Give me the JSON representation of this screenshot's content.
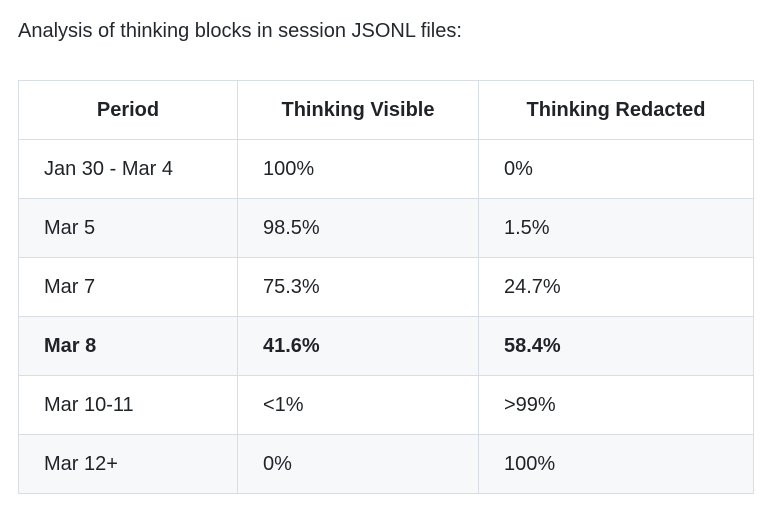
{
  "title": "Analysis of thinking blocks in session JSONL files:",
  "colors": {
    "text": "#1f2328",
    "stripe_row_background": "#f6f8fa",
    "border": "#d8dee4",
    "page_background": "#ffffff"
  },
  "table": {
    "columns": [
      "Period",
      "Thinking Visible",
      "Thinking Redacted"
    ],
    "rows": [
      {
        "period": "Jan 30 - Mar 4",
        "visible": "100%",
        "redacted": "0%",
        "bold": false
      },
      {
        "period": "Mar 5",
        "visible": "98.5%",
        "redacted": "1.5%",
        "bold": false
      },
      {
        "period": "Mar 7",
        "visible": "75.3%",
        "redacted": "24.7%",
        "bold": false
      },
      {
        "period": "Mar 8",
        "visible": "41.6%",
        "redacted": "58.4%",
        "bold": true
      },
      {
        "period": "Mar 10-11",
        "visible": "<1%",
        "redacted": ">99%",
        "bold": false
      },
      {
        "period": "Mar 12+",
        "visible": "0%",
        "redacted": "100%",
        "bold": false
      }
    ]
  },
  "chart_data": {
    "type": "table",
    "title": "Analysis of thinking blocks in session JSONL files:",
    "categories": [
      "Jan 30 - Mar 4",
      "Mar 5",
      "Mar 7",
      "Mar 8",
      "Mar 10-11",
      "Mar 12+"
    ],
    "series": [
      {
        "name": "Thinking Visible",
        "values": [
          "100%",
          "98.5%",
          "75.3%",
          "41.6%",
          "<1%",
          "0%"
        ]
      },
      {
        "name": "Thinking Redacted",
        "values": [
          "0%",
          "1.5%",
          "24.7%",
          "58.4%",
          ">99%",
          "100%"
        ]
      }
    ]
  }
}
